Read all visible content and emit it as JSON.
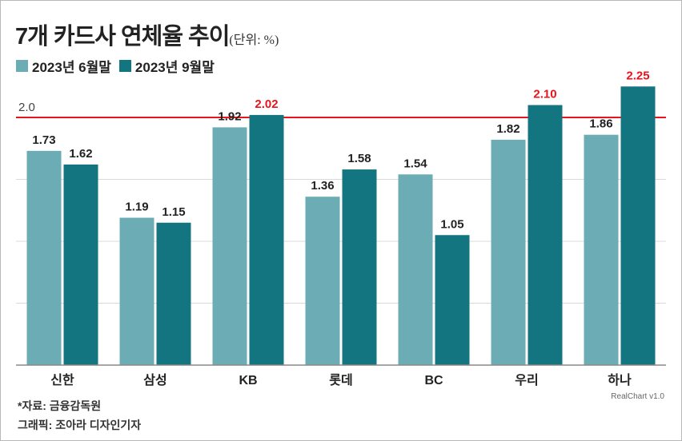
{
  "title": "7개 카드사 연체율 추이",
  "unit": "(단위: %)",
  "colors": {
    "series1": "#6cadb5",
    "series2": "#127580",
    "highlight": "#e8141b",
    "reference_line": "#e8141b",
    "grid": "#d9d9d9",
    "axis": "#8a8a8a"
  },
  "chart_data": {
    "type": "bar",
    "categories": [
      "신한",
      "삼성",
      "KB",
      "롯데",
      "BC",
      "우리",
      "하나"
    ],
    "series": [
      {
        "name": "2023년 6월말",
        "values": [
          1.73,
          1.19,
          1.92,
          1.36,
          1.54,
          1.82,
          1.86
        ]
      },
      {
        "name": "2023년 9월말",
        "values": [
          1.62,
          1.15,
          2.02,
          1.58,
          1.05,
          2.1,
          2.25
        ]
      }
    ],
    "value_labels": [
      [
        "1.73",
        "1.19",
        "1.92",
        "1.36",
        "1.54",
        "1.82",
        "1.86"
      ],
      [
        "1.62",
        "1.15",
        "2.02",
        "1.58",
        "1.05",
        "2.10",
        "2.25"
      ]
    ],
    "reference_line": {
      "value": 2.0,
      "label": "2.0"
    },
    "highlight_above_reference": true,
    "ylim": [
      0,
      2.4
    ],
    "grid_values": [
      0.5,
      1.0,
      1.5
    ],
    "grid": true,
    "legend_position": "top-left"
  },
  "footer": {
    "source": "*자료: 금융감독원",
    "graphic": "그래픽: 조아라 디자인기자",
    "credit": "RealChart v1.0"
  }
}
